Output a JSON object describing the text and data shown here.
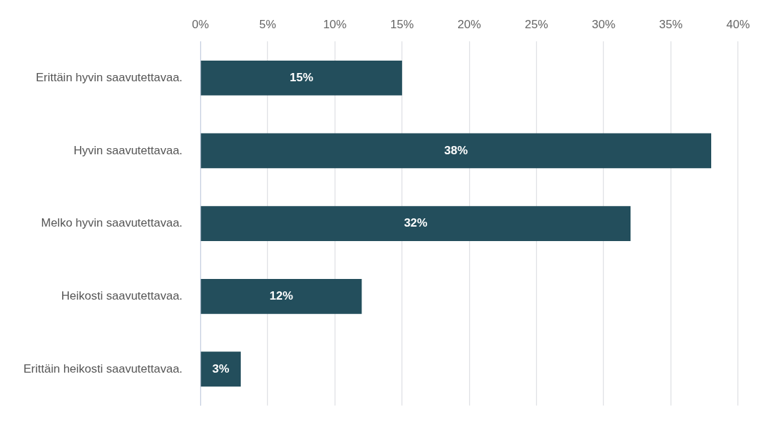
{
  "chart_data": {
    "type": "bar",
    "orientation": "horizontal",
    "categories": [
      "Erittäin hyvin saavutettavaa.",
      "Hyvin saavutettavaa.",
      "Melko hyvin saavutettavaa.",
      "Heikosti saavutettavaa.",
      "Erittäin heikosti saavutettavaa."
    ],
    "values": [
      15,
      38,
      32,
      12,
      3
    ],
    "value_labels": [
      "15%",
      "38%",
      "32%",
      "12%",
      "3%"
    ],
    "color": "#234e5c",
    "xlim": [
      0,
      40
    ],
    "xticks": [
      {
        "value": 0,
        "label": "0%"
      },
      {
        "value": 5,
        "label": "5%"
      },
      {
        "value": 10,
        "label": "10%"
      },
      {
        "value": 15,
        "label": "15%"
      },
      {
        "value": 20,
        "label": "20%"
      },
      {
        "value": 25,
        "label": "25%"
      },
      {
        "value": 30,
        "label": "30%"
      },
      {
        "value": 35,
        "label": "35%"
      },
      {
        "value": 40,
        "label": "40%"
      }
    ],
    "grid": "x",
    "legend": false
  }
}
